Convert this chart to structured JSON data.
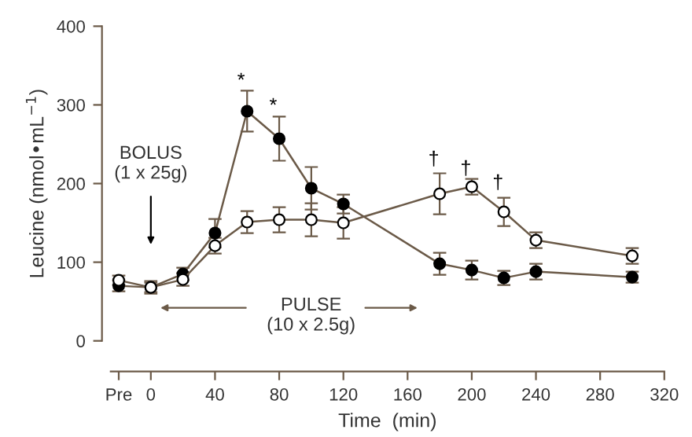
{
  "chart_data": {
    "type": "line",
    "xlabel": "Time  (min)",
    "ylabel": "Leucine (nmol•mL$^{−1}$)",
    "x": [
      -20,
      0,
      20,
      40,
      60,
      80,
      100,
      120,
      180,
      200,
      220,
      240,
      300
    ],
    "series": [
      {
        "color": "#000000",
        "values": [
          70,
          68,
          85,
          137,
          292,
          257,
          194,
          174,
          98,
          90,
          80,
          88,
          81
        ],
        "errors": [
          7,
          8,
          8,
          18,
          26,
          28,
          27,
          12,
          14,
          12,
          9,
          10,
          7
        ]
      },
      {
        "color": "#ffffff",
        "values": [
          77,
          68,
          78,
          121,
          151,
          154,
          154,
          150,
          187,
          196,
          164,
          128,
          108
        ],
        "errors": [
          6,
          6,
          8,
          10,
          14,
          16,
          21,
          20,
          26,
          10,
          18,
          10,
          10
        ]
      }
    ],
    "xlim": [
      -25,
      320
    ],
    "xticks": [
      {
        "value": -20,
        "label": "Pre"
      },
      0,
      40,
      80,
      120,
      160,
      200,
      240,
      280,
      320
    ],
    "ylim": [
      0,
      400
    ],
    "yticks": [
      0,
      100,
      200,
      300,
      400
    ],
    "marker": "circle",
    "line_style": "solid",
    "grid": false,
    "legend": false,
    "annotations": [
      "*",
      "*",
      "†",
      "†",
      "†",
      "BOLUS\n(1 x 25g)",
      "PULSE\n(10 x 2.5g)"
    ]
  }
}
